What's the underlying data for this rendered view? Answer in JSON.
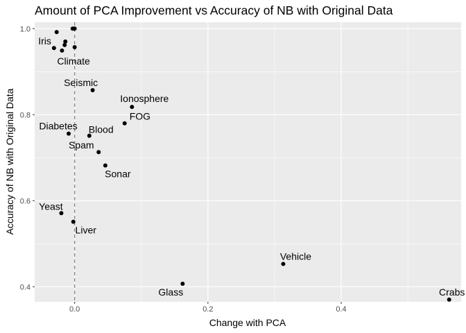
{
  "chart_data": {
    "type": "scatter",
    "title": "Amount of PCA Improvement vs Accuracy of NB with Original Data",
    "xlabel": "Change with PCA",
    "ylabel": "Accuracy of NB with Original Data",
    "xlim": [
      -0.06,
      0.58
    ],
    "ylim": [
      0.365,
      1.015
    ],
    "xticks": [
      0.0,
      0.2,
      0.4
    ],
    "xtick_labels": [
      "0.0",
      "0.2",
      "0.4"
    ],
    "yticks": [
      0.4,
      0.6,
      0.8,
      1.0
    ],
    "ytick_labels": [
      "0.4",
      "0.6",
      "0.8",
      "1.0"
    ],
    "grid": true,
    "reference_line": {
      "x": 0.0,
      "style": "dashed"
    },
    "points": [
      {
        "x": -0.027,
        "y": 0.992,
        "label": ""
      },
      {
        "x": -0.003,
        "y": 1.0,
        "label": ""
      },
      {
        "x": -0.001,
        "y": 1.0,
        "label": ""
      },
      {
        "x": 0.0,
        "y": 1.0,
        "label": ""
      },
      {
        "x": -0.014,
        "y": 0.97,
        "label": ""
      },
      {
        "x": -0.015,
        "y": 0.962,
        "label": ""
      },
      {
        "x": -0.031,
        "y": 0.955,
        "label": "Iris"
      },
      {
        "x": -0.019,
        "y": 0.949,
        "label": "Climate"
      },
      {
        "x": 0.0,
        "y": 0.957,
        "label": ""
      },
      {
        "x": 0.027,
        "y": 0.857,
        "label": "Seismic"
      },
      {
        "x": 0.086,
        "y": 0.818,
        "label": "Ionosphere"
      },
      {
        "x": 0.075,
        "y": 0.78,
        "label": "FOG"
      },
      {
        "x": -0.009,
        "y": 0.756,
        "label": "Diabetes"
      },
      {
        "x": 0.022,
        "y": 0.751,
        "label": "Blood"
      },
      {
        "x": 0.036,
        "y": 0.713,
        "label": "Spam"
      },
      {
        "x": 0.046,
        "y": 0.682,
        "label": "Sonar"
      },
      {
        "x": -0.02,
        "y": 0.571,
        "label": "Yeast"
      },
      {
        "x": -0.002,
        "y": 0.551,
        "label": "Liver"
      },
      {
        "x": 0.313,
        "y": 0.453,
        "label": "Vehicle"
      },
      {
        "x": 0.162,
        "y": 0.407,
        "label": "Glass"
      },
      {
        "x": 0.562,
        "y": 0.37,
        "label": "Crabs"
      }
    ]
  }
}
